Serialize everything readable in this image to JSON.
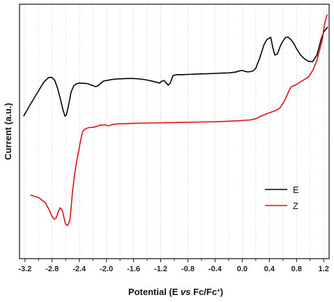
{
  "chart_data": {
    "type": "line",
    "xlabel": {
      "prefix": "Potential (E ",
      "italic": "vs",
      "main": " Fc/Fc",
      "sup": "+",
      "suffix": ")"
    },
    "ylabel": "Current (a.u.)",
    "xlim": [
      -3.28,
      1.28
    ],
    "ylim": [
      0,
      1
    ],
    "x_reversed": false,
    "grid": {
      "vertical": true,
      "horizontal": false,
      "style": "dotted"
    },
    "x_ticks": [
      -3.2,
      -2.8,
      -2.4,
      -2.0,
      -1.6,
      -1.2,
      -0.8,
      -0.4,
      0.0,
      0.4,
      0.8,
      1.2
    ],
    "x_tick_labels": [
      "-3.2",
      "-2.8",
      "-2.4",
      "-2.0",
      "-1.6",
      "-1.2",
      "-0.8",
      "-0.4",
      "0.0",
      "0.4",
      "0.8",
      "1.2"
    ],
    "y_tick_labels_shown": false,
    "legend": {
      "position": "right",
      "entries": [
        {
          "name": "E",
          "color": "#000000"
        },
        {
          "name": "Z",
          "color": "#dd1111"
        }
      ]
    },
    "series": [
      {
        "name": "E",
        "color": "#000000",
        "x": [
          -3.22,
          -3.1,
          -3.0,
          -2.92,
          -2.85,
          -2.8,
          -2.76,
          -2.72,
          -2.68,
          -2.64,
          -2.61,
          -2.59,
          -2.56,
          -2.52,
          -2.48,
          -2.44,
          -2.4,
          -2.34,
          -2.28,
          -2.22,
          -2.16,
          -2.12,
          -2.08,
          -2.04,
          -2.0,
          -1.94,
          -1.86,
          -1.78,
          -1.7,
          -1.6,
          -1.5,
          -1.4,
          -1.3,
          -1.22,
          -1.18,
          -1.15,
          -1.12,
          -1.09,
          -1.06,
          -1.02,
          -0.96,
          -0.88,
          -0.8,
          -0.7,
          -0.6,
          -0.5,
          -0.4,
          -0.3,
          -0.2,
          -0.1,
          -0.05,
          0.0,
          0.04,
          0.08,
          0.12,
          0.16,
          0.2,
          0.26,
          0.32,
          0.36,
          0.39,
          0.42,
          0.45,
          0.48,
          0.52,
          0.56,
          0.6,
          0.64,
          0.68,
          0.72,
          0.76,
          0.8,
          0.86,
          0.92,
          0.98,
          1.04,
          1.1,
          1.16,
          1.2,
          1.24,
          1.26
        ],
        "y": [
          0.56,
          0.615,
          0.66,
          0.695,
          0.712,
          0.712,
          0.7,
          0.67,
          0.63,
          0.585,
          0.56,
          0.565,
          0.6,
          0.655,
          0.68,
          0.687,
          0.69,
          0.689,
          0.688,
          0.682,
          0.676,
          0.68,
          0.69,
          0.698,
          0.7,
          0.703,
          0.706,
          0.707,
          0.708,
          0.708,
          0.706,
          0.702,
          0.696,
          0.69,
          0.698,
          0.7,
          0.69,
          0.682,
          0.69,
          0.72,
          0.723,
          0.723,
          0.724,
          0.725,
          0.726,
          0.727,
          0.728,
          0.729,
          0.73,
          0.733,
          0.737,
          0.74,
          0.736,
          0.734,
          0.735,
          0.738,
          0.748,
          0.79,
          0.84,
          0.86,
          0.865,
          0.87,
          0.83,
          0.8,
          0.805,
          0.835,
          0.855,
          0.87,
          0.87,
          0.86,
          0.845,
          0.825,
          0.8,
          0.785,
          0.775,
          0.775,
          0.8,
          0.86,
          0.89,
          0.905,
          0.91
        ]
      },
      {
        "name": "Z",
        "color": "#dd1111",
        "x": [
          -3.12,
          -3.0,
          -2.9,
          -2.84,
          -2.8,
          -2.77,
          -2.74,
          -2.71,
          -2.68,
          -2.65,
          -2.62,
          -2.6,
          -2.57,
          -2.54,
          -2.52,
          -2.5,
          -2.47,
          -2.44,
          -2.41,
          -2.38,
          -2.35,
          -2.31,
          -2.26,
          -2.2,
          -2.14,
          -2.08,
          -2.02,
          -1.97,
          -1.9,
          -1.8,
          -1.6,
          -1.4,
          -1.2,
          -1.0,
          -0.8,
          -0.6,
          -0.4,
          -0.2,
          -0.05,
          0.05,
          0.12,
          0.2,
          0.3,
          0.4,
          0.5,
          0.56,
          0.6,
          0.64,
          0.68,
          0.72,
          0.76,
          0.8,
          0.86,
          0.92,
          0.98,
          1.04,
          1.1,
          1.14,
          1.18,
          1.2,
          1.22,
          1.24,
          1.25
        ],
        "y": [
          0.25,
          0.24,
          0.22,
          0.19,
          0.165,
          0.155,
          0.16,
          0.185,
          0.2,
          0.19,
          0.155,
          0.135,
          0.13,
          0.15,
          0.2,
          0.26,
          0.33,
          0.38,
          0.42,
          0.465,
          0.5,
          0.51,
          0.515,
          0.516,
          0.52,
          0.525,
          0.526,
          0.522,
          0.528,
          0.53,
          0.532,
          0.533,
          0.534,
          0.535,
          0.536,
          0.537,
          0.538,
          0.54,
          0.542,
          0.544,
          0.545,
          0.55,
          0.563,
          0.573,
          0.583,
          0.593,
          0.61,
          0.63,
          0.655,
          0.675,
          0.68,
          0.685,
          0.695,
          0.705,
          0.715,
          0.74,
          0.78,
          0.82,
          0.86,
          0.9,
          0.93,
          0.95,
          0.96
        ]
      }
    ]
  }
}
